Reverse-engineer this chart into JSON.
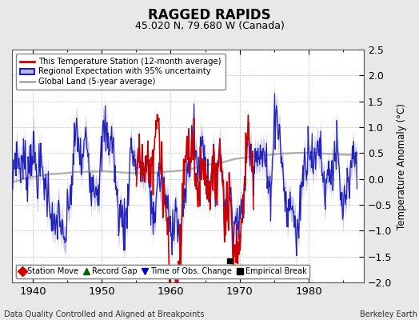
{
  "title": "RAGGED RAPIDS",
  "subtitle": "45.020 N, 79.680 W (Canada)",
  "ylabel": "Temperature Anomaly (°C)",
  "xlabel_note": "Data Quality Controlled and Aligned at Breakpoints",
  "credit": "Berkeley Earth",
  "ylim": [
    -2.0,
    2.5
  ],
  "xlim": [
    1937,
    1988
  ],
  "xticks": [
    1940,
    1950,
    1960,
    1970,
    1980
  ],
  "yticks": [
    -2,
    -1.5,
    -1,
    -0.5,
    0,
    0.5,
    1,
    1.5,
    2,
    2.5
  ],
  "bg_color": "#e8e8e8",
  "plot_bg_color": "#ffffff",
  "station_color": "#cc0000",
  "regional_color": "#2222bb",
  "regional_fill_color": "#b8b8e8",
  "global_color": "#aaaaaa",
  "empirical_break_x": 1968.5,
  "empirical_break_y": -1.58,
  "station_start": 1955.0,
  "station_end": 1972.0,
  "legend1_entries": [
    {
      "label": "This Temperature Station (12-month average)",
      "color": "#cc0000"
    },
    {
      "label": "Regional Expectation with 95% uncertainty",
      "color": "#2222bb",
      "fill": "#b8b8e8"
    },
    {
      "label": "Global Land (5-year average)",
      "color": "#aaaaaa"
    }
  ],
  "legend2_entries": [
    {
      "label": "Station Move",
      "color": "#cc0000",
      "marker": "D"
    },
    {
      "label": "Record Gap",
      "color": "#006600",
      "marker": "^"
    },
    {
      "label": "Time of Obs. Change",
      "color": "#0000cc",
      "marker": "v"
    },
    {
      "label": "Empirical Break",
      "color": "#000000",
      "marker": "s"
    }
  ]
}
